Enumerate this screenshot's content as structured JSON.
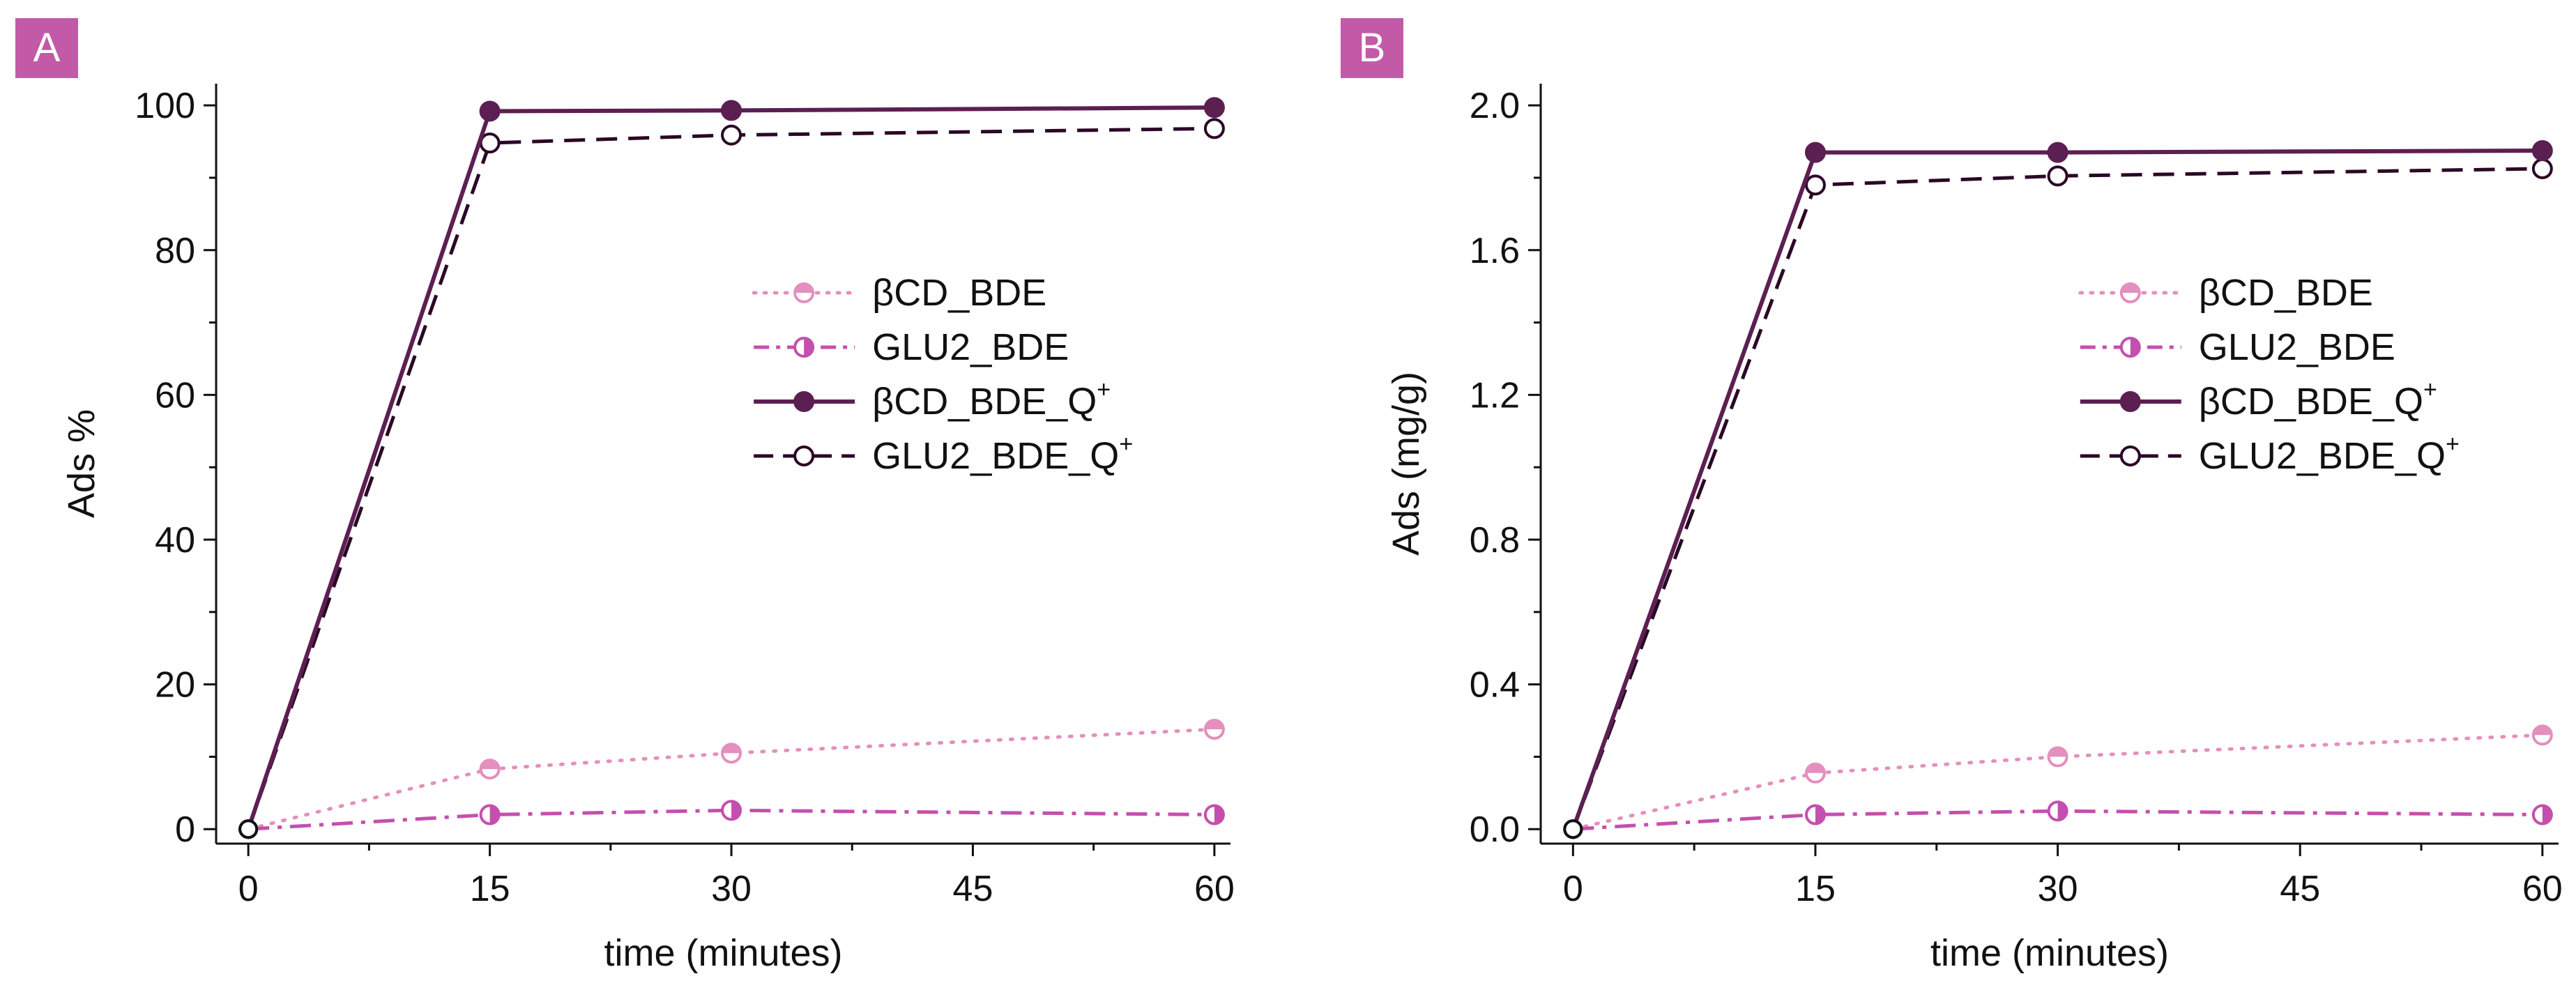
{
  "colors": {
    "bcd_bde": "#e48fbd",
    "glu2_bde": "#c54fae",
    "bcd_bde_q": "#5c1f52",
    "glu2_bde_q": "#2b0826",
    "badge": "#c25aa8",
    "axis": "#111111"
  },
  "chart_data": [
    {
      "type": "line",
      "panel_label": "A",
      "xlabel": "time (minutes)",
      "ylabel": "Ads %",
      "xlim": [
        -2,
        61
      ],
      "ylim": [
        -2,
        103
      ],
      "xticks": [
        0,
        15,
        30,
        45,
        60
      ],
      "xtick_labels": [
        "0",
        "15",
        "30",
        "45",
        "60"
      ],
      "yticks": [
        0,
        20,
        40,
        60,
        80,
        100
      ],
      "ytick_labels": [
        "0",
        "20",
        "40",
        "60",
        "80",
        "100"
      ],
      "x": [
        0,
        15,
        30,
        60
      ],
      "legend_position": "center-right",
      "series": [
        {
          "name": "βCD_BDE",
          "values": [
            0,
            8.3,
            10.5,
            13.8
          ],
          "line": "dotted",
          "marker": "half-top",
          "color_key": "bcd_bde"
        },
        {
          "name": "GLU2_BDE",
          "values": [
            0,
            2.0,
            2.6,
            2.0
          ],
          "line": "dashdot",
          "marker": "half-right",
          "color_key": "glu2_bde"
        },
        {
          "name": "βCD_BDE_Q",
          "superscript": "+",
          "values": [
            0,
            99.2,
            99.3,
            99.7
          ],
          "line": "solid",
          "marker": "filled",
          "color_key": "bcd_bde_q"
        },
        {
          "name": "GLU2_BDE_Q",
          "superscript": "+",
          "values": [
            0,
            94.8,
            95.9,
            96.8
          ],
          "line": "dashed",
          "marker": "open",
          "color_key": "glu2_bde_q"
        }
      ]
    },
    {
      "type": "line",
      "panel_label": "B",
      "xlabel": "time (minutes)",
      "ylabel": "Ads (mg/g)",
      "xlim": [
        -2,
        61
      ],
      "ylim": [
        -0.04,
        2.06
      ],
      "xticks": [
        0,
        15,
        30,
        45,
        60
      ],
      "xtick_labels": [
        "0",
        "15",
        "30",
        "45",
        "60"
      ],
      "yticks": [
        0,
        0.4,
        0.8,
        1.2,
        1.6,
        2.0
      ],
      "ytick_labels": [
        "0.0",
        "0.4",
        "0.8",
        "1.2",
        "1.6",
        "2.0"
      ],
      "x": [
        0,
        15,
        30,
        60
      ],
      "legend_position": "center-right",
      "series": [
        {
          "name": "βCD_BDE",
          "values": [
            0,
            0.155,
            0.2,
            0.26
          ],
          "line": "dotted",
          "marker": "half-top",
          "color_key": "bcd_bde"
        },
        {
          "name": "GLU2_BDE",
          "values": [
            0,
            0.04,
            0.05,
            0.04
          ],
          "line": "dashdot",
          "marker": "half-right",
          "color_key": "glu2_bde"
        },
        {
          "name": "βCD_BDE_Q",
          "superscript": "+",
          "values": [
            0,
            1.87,
            1.87,
            1.875
          ],
          "line": "solid",
          "marker": "filled",
          "color_key": "bcd_bde_q"
        },
        {
          "name": "GLU2_BDE_Q",
          "superscript": "+",
          "values": [
            0,
            1.78,
            1.805,
            1.825
          ],
          "line": "dashed",
          "marker": "open",
          "color_key": "glu2_bde_q"
        }
      ]
    }
  ]
}
